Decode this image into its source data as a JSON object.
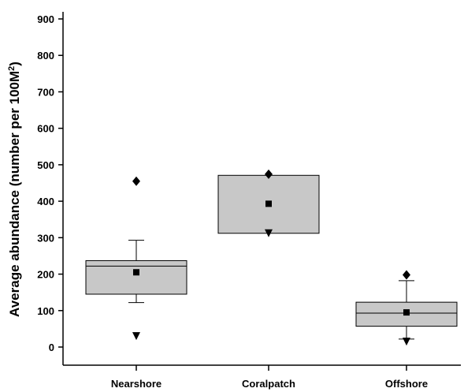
{
  "chart_data": {
    "type": "box",
    "title": "",
    "xlabel": "",
    "ylabel": "Average abundance (number per 100M",
    "ylabel_superscript": "2",
    "ylabel_close": ")",
    "ylim": [
      -50,
      900
    ],
    "yticks": [
      0,
      100,
      200,
      300,
      400,
      500,
      600,
      700,
      800,
      900
    ],
    "categories": [
      "Nearshore",
      "Coralpatch",
      "Offshore"
    ],
    "grid": false,
    "legend": "none",
    "box_fill": "#c8c8c8",
    "boxes": [
      {
        "category": "Nearshore",
        "q1": 145,
        "median": 222,
        "q3": 237,
        "whisker_low": 122,
        "whisker_high": 293,
        "mean": 205,
        "max": 455,
        "min": 30
      },
      {
        "category": "Coralpatch",
        "q1": 312,
        "median": null,
        "q3": 471,
        "whisker_low": null,
        "whisker_high": null,
        "mean": 393,
        "max": 474,
        "min": 312
      },
      {
        "category": "Offshore",
        "q1": 57,
        "median": 93,
        "q3": 123,
        "whisker_low": 22,
        "whisker_high": 182,
        "mean": 95,
        "max": 198,
        "min": 15
      }
    ]
  }
}
